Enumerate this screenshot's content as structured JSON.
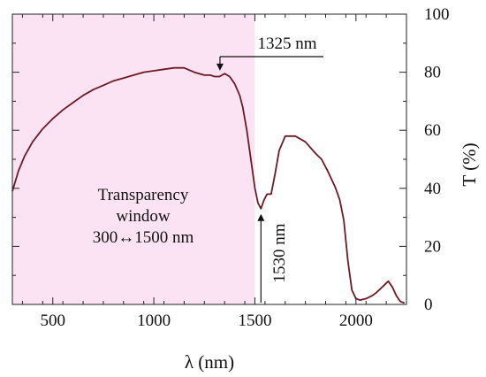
{
  "chart_data": {
    "type": "line",
    "xlabel": "λ (nm)",
    "ylabel": "T (%)",
    "xlim": [
      300,
      2250
    ],
    "ylim": [
      0,
      100
    ],
    "x_ticks": [
      500,
      1000,
      1500,
      2000
    ],
    "y_ticks": [
      0,
      20,
      40,
      60,
      80,
      100
    ],
    "y_axis_side": "right",
    "grid": false,
    "colors": {
      "line": "#6b1a24",
      "band": "#fce3f3"
    },
    "band": {
      "x_start": 300,
      "x_end": 1500,
      "label": [
        "Transparency",
        "window",
        "300↔1500 nm"
      ]
    },
    "annotations": [
      {
        "text": "1325 nm",
        "x": 1325,
        "y": 79
      },
      {
        "text": "1530 nm",
        "x": 1530,
        "y": 33
      }
    ],
    "series": [
      {
        "x": [
          300,
          330,
          360,
          400,
          450,
          500,
          550,
          600,
          650,
          700,
          750,
          800,
          850,
          900,
          950,
          1000,
          1050,
          1100,
          1150,
          1200,
          1250,
          1280,
          1300,
          1325,
          1350,
          1375,
          1400,
          1425,
          1440,
          1460,
          1480,
          1500,
          1515,
          1530,
          1545,
          1560,
          1580,
          1600,
          1620,
          1650,
          1700,
          1750,
          1800,
          1830,
          1860,
          1880,
          1900,
          1920,
          1940,
          1960,
          1980,
          2000,
          2020,
          2050,
          2080,
          2100,
          2130,
          2160,
          2180,
          2200,
          2220,
          2240
        ],
        "y": [
          39,
          46,
          51,
          56,
          60.5,
          64,
          67,
          69.5,
          72,
          74,
          75.5,
          77,
          78,
          79,
          80,
          80.5,
          81,
          81.5,
          81.5,
          80,
          79,
          79,
          78.5,
          78.5,
          79.5,
          78.5,
          76,
          72,
          68,
          60,
          50,
          40,
          35,
          33,
          36,
          38,
          38,
          45,
          53,
          58,
          58,
          56,
          52,
          50,
          46,
          43,
          40,
          36,
          29,
          15,
          5,
          2,
          1.5,
          2,
          3,
          4,
          6,
          8,
          6,
          3,
          1,
          0.5
        ]
      }
    ]
  }
}
